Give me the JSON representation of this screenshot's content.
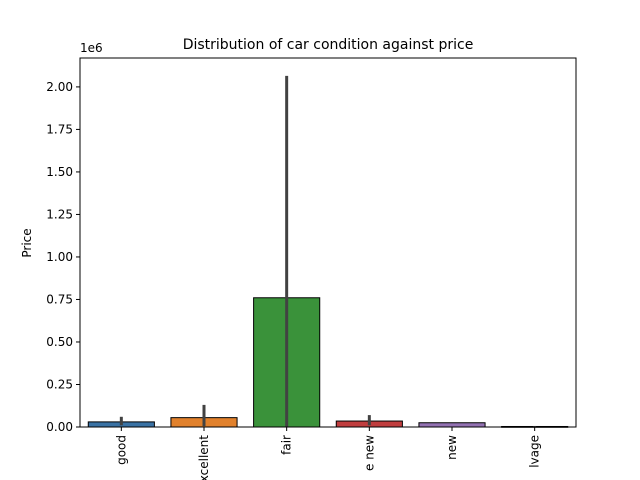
{
  "chart_data": {
    "type": "bar",
    "title": "Distribution of car condition against price",
    "xlabel": "",
    "ylabel": "Price",
    "y_scale_label": "1e6",
    "ylim": [
      0,
      2170000
    ],
    "yticks": [
      0,
      250000,
      500000,
      750000,
      1000000,
      1250000,
      1500000,
      1750000,
      2000000
    ],
    "ytick_labels": [
      "0.00",
      "0.25",
      "0.50",
      "0.75",
      "1.00",
      "1.25",
      "1.50",
      "1.75",
      "2.00"
    ],
    "categories": [
      "good",
      "excellent",
      "fair",
      "like new",
      "new",
      "salvage"
    ],
    "tick_labels_shown": [
      "good",
      "xcellent",
      "fair",
      "e new",
      "new",
      "lvage"
    ],
    "values": [
      30000,
      55000,
      760000,
      35000,
      25000,
      3000
    ],
    "error_bars": [
      [
        10000,
        60000
      ],
      [
        5000,
        130000
      ],
      [
        0,
        2065000
      ],
      [
        10000,
        70000
      ],
      [
        25000,
        25000
      ],
      [
        0,
        6000
      ]
    ],
    "colors": [
      "#3a72a4",
      "#e1812c",
      "#3a923a",
      "#c03d3e",
      "#9372b2",
      "#845b53"
    ],
    "errorbar_color": "#424242",
    "grid": false,
    "legend": "none"
  }
}
